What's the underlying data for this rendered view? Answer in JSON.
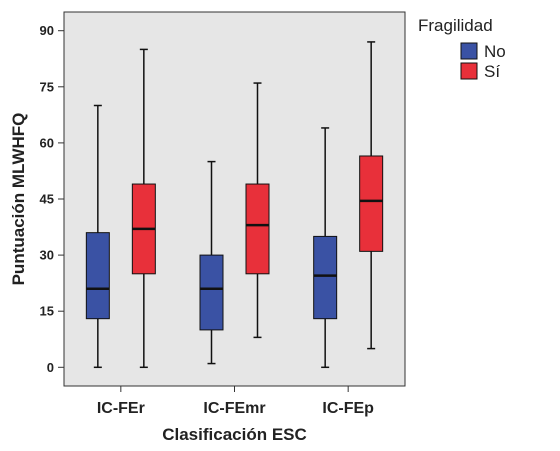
{
  "chart_data": {
    "type": "boxplot",
    "xlabel": "Clasificación ESC",
    "ylabel": "Puntuación MLWHFQ",
    "ylim": [
      -5,
      95
    ],
    "yticks": [
      0,
      15,
      30,
      45,
      60,
      75,
      90
    ],
    "categories": [
      "IC-FEr",
      "IC-FEmr",
      "IC-FEp"
    ],
    "grid": false,
    "legend": {
      "title": "Fragilidad",
      "placement": "top-right"
    },
    "series": [
      {
        "name": "No",
        "color": "#3a52a4",
        "boxes": [
          {
            "min": 0,
            "q1": 13,
            "median": 21,
            "q3": 36,
            "max": 70
          },
          {
            "min": 1,
            "q1": 10,
            "median": 21,
            "q3": 30,
            "max": 55
          },
          {
            "min": 0,
            "q1": 13,
            "median": 24.5,
            "q3": 35,
            "max": 64
          }
        ]
      },
      {
        "name": "Sí",
        "color": "#e8303a",
        "boxes": [
          {
            "min": 0,
            "q1": 25,
            "median": 37,
            "q3": 49,
            "max": 85
          },
          {
            "min": 8,
            "q1": 25,
            "median": 38,
            "q3": 49,
            "max": 76
          },
          {
            "min": 5,
            "q1": 31,
            "median": 44.5,
            "q3": 56.5,
            "max": 87
          }
        ]
      }
    ]
  },
  "colors": {
    "plot_background": "#e6e6e6",
    "frame": "#333333"
  }
}
